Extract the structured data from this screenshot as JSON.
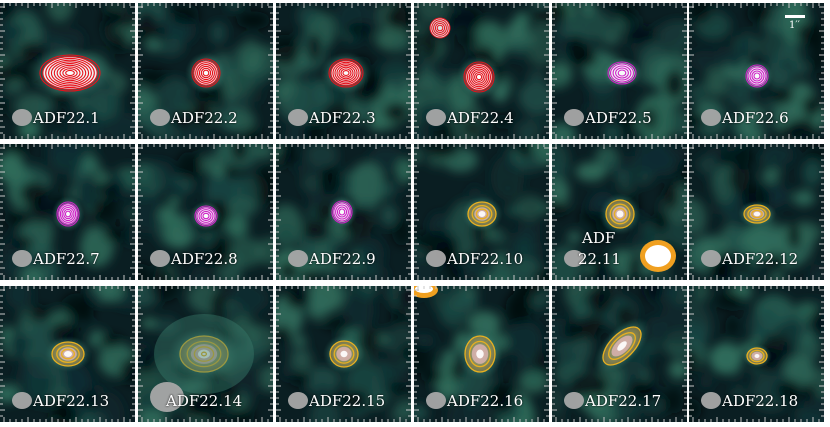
{
  "figure": {
    "scale_bar_label": "1′′",
    "colors": {
      "red_contour": "#e8101a",
      "magenta_contour": "#d020c8",
      "yellow_contour": "#e8b020",
      "background": "#07151a"
    },
    "panels": [
      {
        "label": "ADF22.1",
        "contour": "red"
      },
      {
        "label": "ADF22.2",
        "contour": "red"
      },
      {
        "label": "ADF22.3",
        "contour": "red"
      },
      {
        "label": "ADF22.4",
        "contour": "red"
      },
      {
        "label": "ADF22.5",
        "contour": "magenta"
      },
      {
        "label": "ADF22.6",
        "contour": "magenta"
      },
      {
        "label": "ADF22.7",
        "contour": "magenta"
      },
      {
        "label": "ADF22.8",
        "contour": "magenta"
      },
      {
        "label": "ADF22.9",
        "contour": "magenta"
      },
      {
        "label": "ADF22.10",
        "contour": "yellow"
      },
      {
        "label_line1": "ADF",
        "label_line2": "22.11",
        "contour": "yellow"
      },
      {
        "label": "ADF22.12",
        "contour": "yellow"
      },
      {
        "label": "ADF22.13",
        "contour": "yellow"
      },
      {
        "label": "ADF22.14",
        "contour": "yellow"
      },
      {
        "label": "ADF22.15",
        "contour": "yellow"
      },
      {
        "label": "ADF22.16",
        "contour": "yellow"
      },
      {
        "label": "ADF22.17",
        "contour": "yellow"
      },
      {
        "label": "ADF22.18",
        "contour": "yellow"
      }
    ]
  }
}
